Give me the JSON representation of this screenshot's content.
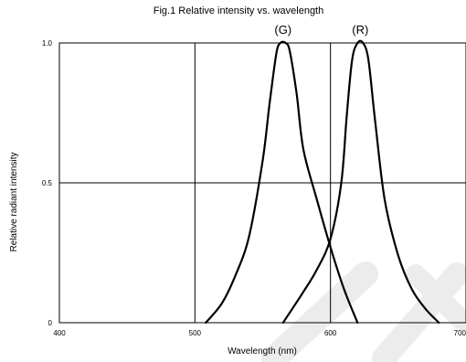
{
  "chart_data": {
    "type": "line",
    "title": "Fig.1 Relative intensity vs. wavelength",
    "xlabel": "Wavelength (nm)",
    "ylabel": "Relative radiant intensity",
    "xlim": [
      400,
      700
    ],
    "ylim": [
      0,
      1.0
    ],
    "x_ticks": [
      400,
      500,
      600,
      700
    ],
    "x_tick_labels": [
      "400",
      "500",
      "600",
      "700"
    ],
    "y_ticks": [
      0,
      0.5,
      1.0
    ],
    "y_tick_labels": [
      "0",
      "0.5",
      "1.0"
    ],
    "grid": true,
    "series": [
      {
        "name": "(G)",
        "color": "#000000",
        "x": [
          508,
          520,
          530,
          540,
          550,
          555,
          560,
          563,
          567,
          570,
          575,
          580,
          590,
          600,
          610,
          620
        ],
        "y": [
          0.0,
          0.07,
          0.17,
          0.31,
          0.58,
          0.78,
          0.96,
          1.0,
          1.0,
          0.97,
          0.82,
          0.62,
          0.44,
          0.27,
          0.12,
          0.0
        ]
      },
      {
        "name": "(R)",
        "color": "#000000",
        "x": [
          565,
          580,
          590,
          600,
          608,
          612,
          616,
          620,
          624,
          628,
          633,
          640,
          650,
          660,
          670,
          680
        ],
        "y": [
          0.0,
          0.11,
          0.19,
          0.3,
          0.5,
          0.74,
          0.94,
          1.0,
          1.0,
          0.94,
          0.72,
          0.44,
          0.24,
          0.12,
          0.05,
          0.0
        ]
      }
    ]
  }
}
